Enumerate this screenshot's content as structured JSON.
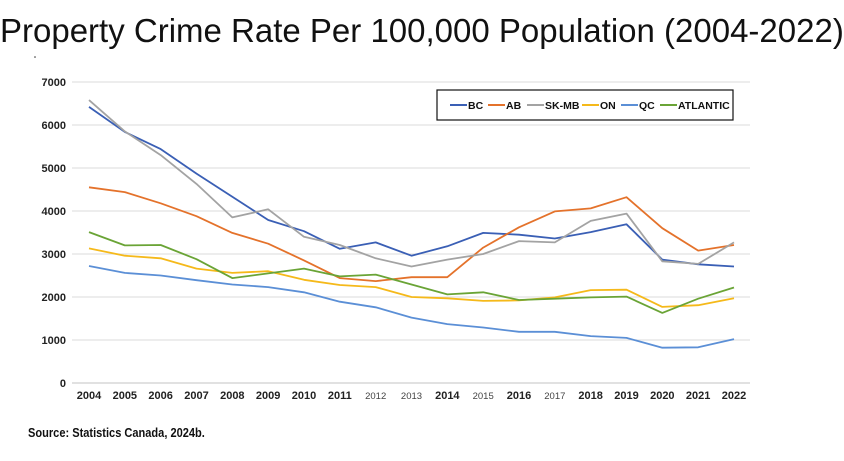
{
  "chart_data": {
    "type": "line",
    "title": "Property Crime Rate Per 100,000 Population (2004-2022)",
    "xlabel": "",
    "ylabel": "",
    "x": [
      "2004",
      "2005",
      "2006",
      "2007",
      "2008",
      "2009",
      "2010",
      "2011",
      "2012",
      "2013",
      "2014",
      "2015",
      "2016",
      "2017",
      "2018",
      "2019",
      "2020",
      "2021",
      "2022"
    ],
    "small_x_labels": [
      "2012",
      "2013",
      "2015",
      "2017"
    ],
    "ylim": [
      0,
      7000
    ],
    "yticks": [
      0,
      1000,
      2000,
      3000,
      4000,
      5000,
      6000,
      7000
    ],
    "grid": true,
    "legend": "top-right",
    "series": [
      {
        "name": "BC",
        "color": "#3a5fb5",
        "values": [
          6420,
          5840,
          5440,
          4870,
          4330,
          3790,
          3530,
          3120,
          3270,
          2960,
          3180,
          3490,
          3450,
          3360,
          3510,
          3690,
          2870,
          2760,
          2710
        ]
      },
      {
        "name": "AB",
        "color": "#e4722b",
        "values": [
          4550,
          4440,
          4180,
          3880,
          3490,
          3240,
          2850,
          2440,
          2370,
          2460,
          2460,
          3150,
          3620,
          3990,
          4060,
          4320,
          3600,
          3080,
          3210
        ]
      },
      {
        "name": "SK-MB",
        "color": "#a3a3a3",
        "values": [
          6580,
          5850,
          5300,
          4630,
          3850,
          4040,
          3400,
          3210,
          2900,
          2710,
          2870,
          3000,
          3300,
          3270,
          3770,
          3940,
          2830,
          2770,
          3270
        ]
      },
      {
        "name": "ON",
        "color": "#f5b91a",
        "values": [
          3130,
          2960,
          2900,
          2660,
          2560,
          2600,
          2400,
          2280,
          2230,
          2000,
          1970,
          1910,
          1920,
          1990,
          2160,
          2170,
          1770,
          1810,
          1970
        ]
      },
      {
        "name": "QC",
        "color": "#5b8fd6",
        "values": [
          2720,
          2560,
          2500,
          2390,
          2290,
          2230,
          2110,
          1890,
          1760,
          1520,
          1370,
          1290,
          1190,
          1190,
          1090,
          1050,
          820,
          830,
          1020
        ]
      },
      {
        "name": "ATLANTIC",
        "color": "#6aa436",
        "values": [
          3510,
          3200,
          3210,
          2880,
          2440,
          2550,
          2660,
          2480,
          2520,
          2290,
          2060,
          2110,
          1930,
          1960,
          1990,
          2010,
          1630,
          1960,
          2220
        ]
      }
    ]
  },
  "source": "Source: Statistics Canada, 2024b."
}
